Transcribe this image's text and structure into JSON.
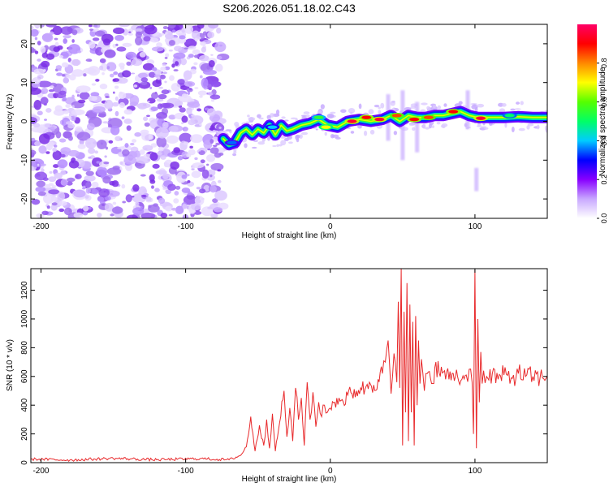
{
  "title": "S206.2026.051.18.02.C43",
  "chart_data": [
    {
      "type": "heatmap",
      "xlabel": "Height of straight line (km)",
      "ylabel": "Frequency (Hz)",
      "xlim": [
        -207,
        150
      ],
      "ylim": [
        -25,
        25
      ],
      "xticks": [
        -200,
        -100,
        0,
        100
      ],
      "xtick_labels": [
        "-200",
        "-100",
        "0",
        "100"
      ],
      "yticks": [
        -20,
        -10,
        0,
        10,
        20
      ],
      "ytick_labels": [
        "-20",
        "-10",
        "0",
        "10",
        "20"
      ],
      "noise_region_x": [
        -207,
        -74
      ],
      "ridge": [
        {
          "x": -74,
          "f": -4.5
        },
        {
          "x": -70,
          "f": -6.0
        },
        {
          "x": -66,
          "f": -5.5
        },
        {
          "x": -62,
          "f": -3.0
        },
        {
          "x": -58,
          "f": -2.0
        },
        {
          "x": -54,
          "f": -3.5
        },
        {
          "x": -50,
          "f": -2.0
        },
        {
          "x": -46,
          "f": -3.0
        },
        {
          "x": -42,
          "f": -1.0
        },
        {
          "x": -38,
          "f": -3.5
        },
        {
          "x": -34,
          "f": -1.0
        },
        {
          "x": -30,
          "f": -2.5
        },
        {
          "x": -26,
          "f": -2.0
        },
        {
          "x": -20,
          "f": -1.0
        },
        {
          "x": -14,
          "f": -0.5
        },
        {
          "x": -8,
          "f": 0.5
        },
        {
          "x": -2,
          "f": -1.0
        },
        {
          "x": 5,
          "f": -1.5
        },
        {
          "x": 12,
          "f": 0.0
        },
        {
          "x": 20,
          "f": 0.5
        },
        {
          "x": 28,
          "f": 0.0
        },
        {
          "x": 36,
          "f": 0.5
        },
        {
          "x": 42,
          "f": 1.5
        },
        {
          "x": 48,
          "f": 0.0
        },
        {
          "x": 54,
          "f": 1.5
        },
        {
          "x": 60,
          "f": 1.0
        },
        {
          "x": 66,
          "f": 1.0
        },
        {
          "x": 72,
          "f": 1.5
        },
        {
          "x": 78,
          "f": 1.5
        },
        {
          "x": 84,
          "f": 2.0
        },
        {
          "x": 90,
          "f": 2.5
        },
        {
          "x": 96,
          "f": 1.5
        },
        {
          "x": 102,
          "f": 1.0
        },
        {
          "x": 110,
          "f": 1.0
        },
        {
          "x": 120,
          "f": 1.0
        },
        {
          "x": 130,
          "f": 1.2
        },
        {
          "x": 140,
          "f": 1.0
        },
        {
          "x": 150,
          "f": 1.0
        }
      ],
      "hotspots": [
        {
          "x": -68,
          "f": -5.5,
          "a": 0.35
        },
        {
          "x": -40,
          "f": -1.5,
          "a": 0.4
        },
        {
          "x": -8,
          "f": 1.0,
          "a": 0.55
        },
        {
          "x": -3,
          "f": -1.5,
          "a": 0.7
        },
        {
          "x": 15,
          "f": 0.0,
          "a": 0.95
        },
        {
          "x": 25,
          "f": 1.0,
          "a": 0.9
        },
        {
          "x": 34,
          "f": 0.5,
          "a": 0.95
        },
        {
          "x": 46,
          "f": 1.5,
          "a": 0.85
        },
        {
          "x": 58,
          "f": 0.5,
          "a": 0.9
        },
        {
          "x": 68,
          "f": 1.0,
          "a": 0.85
        },
        {
          "x": 85,
          "f": 2.5,
          "a": 0.9
        },
        {
          "x": 104,
          "f": 0.8,
          "a": 0.95
        },
        {
          "x": 124,
          "f": 1.5,
          "a": 0.5
        }
      ],
      "spikes": [
        {
          "x": 40,
          "f_low": -5,
          "f_high": 7
        },
        {
          "x": 50,
          "f_low": -10,
          "f_high": 8
        },
        {
          "x": 60,
          "f_low": -8,
          "f_high": 5
        },
        {
          "x": 95,
          "f_low": -2,
          "f_high": 8
        },
        {
          "x": 101,
          "f_low": -18,
          "f_high": -12
        }
      ],
      "colorbar": {
        "label": "Normalized spectral amplitude",
        "range": [
          0,
          1
        ],
        "ticks": [
          0.0,
          0.2,
          0.4,
          0.6,
          0.8
        ],
        "tick_labels": [
          "0.0",
          "0.2",
          "0.4",
          "0.6",
          "0.8"
        ],
        "colors": [
          "#ffffff",
          "#c8a8ff",
          "#8800ff",
          "#0000ff",
          "#00ccff",
          "#00ff66",
          "#55ff00",
          "#ffff00",
          "#ff8800",
          "#ff0000",
          "#ff0066"
        ]
      }
    },
    {
      "type": "line",
      "xlabel": "Height of straight line (km)",
      "ylabel": "SNR (10 * v/v)",
      "xlim": [
        -207,
        150
      ],
      "ylim": [
        0,
        1350
      ],
      "xticks": [
        -200,
        -100,
        0,
        100
      ],
      "xtick_labels": [
        "-200",
        "-100",
        "0",
        "100"
      ],
      "yticks": [
        0,
        200,
        400,
        600,
        800,
        1000,
        1200
      ],
      "ytick_labels": [
        "0",
        "200",
        "400",
        "600",
        "800",
        "1000",
        "1200"
      ],
      "color": "#e8292b",
      "series": [
        {
          "name": "SNR",
          "x": [
            -207,
            -180,
            -150,
            -120,
            -90,
            -70,
            -62,
            -58,
            -55,
            -52,
            -49,
            -46,
            -44,
            -42,
            -40,
            -38,
            -35,
            -32,
            -30,
            -28,
            -26,
            -24,
            -22,
            -20,
            -18,
            -16,
            -14,
            -12,
            -10,
            -8,
            -6,
            -4,
            -2,
            0,
            3,
            6,
            9,
            12,
            15,
            18,
            21,
            24,
            27,
            30,
            33,
            36,
            38,
            40,
            42,
            44,
            46,
            47,
            48,
            49,
            50,
            51,
            52,
            53,
            54,
            55,
            56,
            57,
            58,
            59,
            60,
            61,
            62,
            63,
            64,
            65,
            67,
            70,
            73,
            76,
            79,
            82,
            85,
            88,
            91,
            94,
            96,
            98,
            99,
            100,
            101,
            102,
            103,
            104,
            105,
            106,
            108,
            112,
            116,
            120,
            125,
            130,
            135,
            140,
            145,
            150
          ],
          "y": [
            25,
            18,
            30,
            20,
            28,
            20,
            50,
            110,
            320,
            80,
            260,
            120,
            300,
            100,
            340,
            80,
            280,
            500,
            180,
            380,
            150,
            520,
            300,
            450,
            120,
            560,
            300,
            490,
            250,
            420,
            320,
            400,
            350,
            380,
            420,
            450,
            420,
            470,
            480,
            500,
            520,
            510,
            560,
            540,
            580,
            620,
            700,
            850,
            480,
            760,
            560,
            1120,
            520,
            1350,
            120,
            1050,
            350,
            1250,
            150,
            1100,
            350,
            980,
            120,
            1020,
            400,
            850,
            550,
            720,
            620,
            500,
            620,
            550,
            700,
            600,
            640,
            580,
            620,
            600,
            580,
            610,
            650,
            560,
            200,
            1340,
            100,
            1000,
            420,
            770,
            550,
            640,
            600,
            620,
            580,
            610,
            590,
            620,
            600,
            600,
            590,
            600
          ]
        }
      ]
    }
  ]
}
